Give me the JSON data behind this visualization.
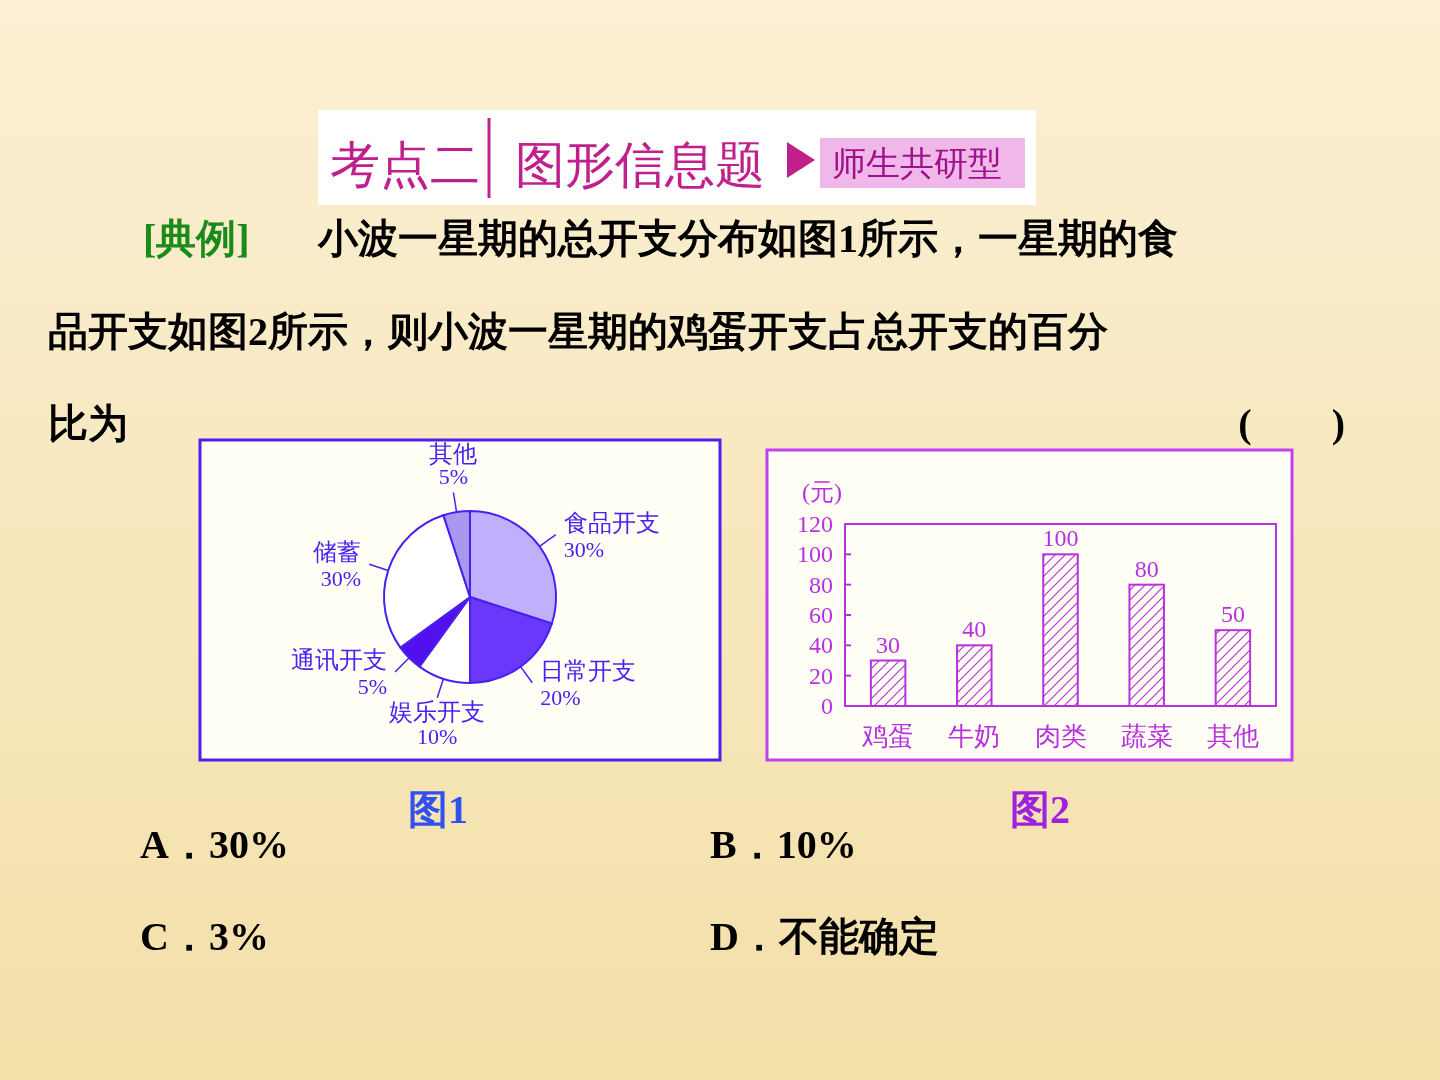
{
  "chart_data": [
    {
      "type": "other",
      "annotations": [
        "考点二",
        "图形信息题",
        "师生共研型",
        "[典例]",
        "小波一星期的总开支分布如图1所示，一星期的食",
        "品开支如图2所示，则小波一星期的鸡蛋开支占总开支的百分",
        "比为",
        "(　　)",
        "A．30%",
        "B．10%",
        "C．3%",
        "D．不能确定"
      ]
    },
    {
      "type": "pie",
      "title": "图1",
      "categories": [
        "食品开支",
        "日常开支",
        "娱乐开支",
        "通讯开支",
        "储蓄",
        "其他"
      ],
      "values": [
        30,
        20,
        10,
        5,
        30,
        5
      ],
      "value_labels": [
        "30%",
        "20%",
        "10%",
        "5%",
        "30%",
        "5%"
      ],
      "colors": [
        "#c0b0fc",
        "#6a38fa",
        "#ffffff",
        "#5010f0",
        "#ffffff",
        "#a898ee"
      ]
    },
    {
      "type": "bar",
      "title": "图2",
      "ylabel": "(元)",
      "categories": [
        "鸡蛋",
        "牛奶",
        "肉类",
        "蔬菜",
        "其他"
      ],
      "values": [
        30,
        40,
        100,
        80,
        50
      ],
      "color": "#b830e0",
      "ylim": [
        0,
        120
      ],
      "yticks": [
        0,
        20,
        40,
        60,
        80,
        100,
        120
      ],
      "data_labels": true
    }
  ]
}
